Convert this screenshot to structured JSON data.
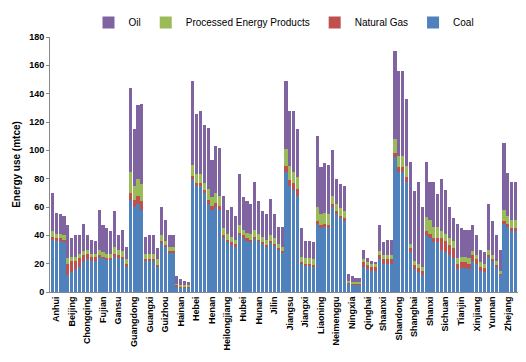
{
  "chart_data": {
    "type": "bar",
    "stacked": true,
    "grid": false,
    "legend": "top",
    "y_label": "Energy use (mtce)",
    "ylim": [
      0,
      180
    ],
    "yticks": [
      0,
      20,
      40,
      60,
      80,
      100,
      120,
      140,
      160,
      180
    ],
    "categories": [
      null,
      "Anhui",
      null,
      null,
      null,
      "Beijing",
      null,
      null,
      null,
      "Chongqing",
      null,
      null,
      null,
      "Fujian",
      null,
      null,
      null,
      "Gansu",
      null,
      null,
      null,
      "Guangdong",
      null,
      null,
      null,
      "Guangxi",
      null,
      null,
      null,
      "Guizhou",
      null,
      null,
      null,
      "Hainan",
      null,
      null,
      null,
      "Hebei",
      null,
      null,
      null,
      "Henan",
      null,
      null,
      null,
      "Heilongjiang",
      null,
      null,
      null,
      "Hubei",
      null,
      null,
      null,
      "Hunan",
      null,
      null,
      null,
      "Jilin",
      null,
      null,
      null,
      "Jiangsu",
      null,
      null,
      null,
      "Jiangxi",
      null,
      null,
      null,
      "Liaoning",
      null,
      null,
      null,
      "Neimenggu",
      null,
      null,
      null,
      "Ningxia",
      null,
      null,
      null,
      "Qinghai",
      null,
      null,
      null,
      "Shaanxi",
      null,
      null,
      null,
      "Shandong",
      null,
      null,
      null,
      "Shanghai",
      null,
      null,
      null,
      "Shanxi",
      null,
      null,
      null,
      "Sichuan",
      null,
      null,
      null,
      "Tianjin",
      null,
      null,
      null,
      "Xinjiang",
      null,
      null,
      null,
      "Yunnan",
      null,
      null,
      null,
      "Zhejang",
      null,
      null
    ],
    "series": [
      {
        "name": "Coal",
        "color": "#4f81bd",
        "values": [
          37,
          36,
          36,
          35,
          12,
          14,
          16,
          18,
          22,
          23,
          22,
          22,
          25,
          24,
          23,
          23,
          25,
          24,
          23,
          18,
          65,
          60,
          62,
          58,
          22,
          22,
          22,
          18,
          35,
          32,
          28,
          28,
          4,
          3,
          3,
          3,
          80,
          75,
          75,
          70,
          62,
          58,
          60,
          58,
          38,
          35,
          33,
          32,
          40,
          38,
          36,
          35,
          38,
          36,
          34,
          32,
          35,
          33,
          30,
          28,
          85,
          75,
          72,
          68,
          20,
          19,
          19,
          18,
          48,
          45,
          46,
          45,
          60,
          55,
          52,
          50,
          6,
          5,
          5,
          5,
          18,
          16,
          15,
          15,
          23,
          20,
          20,
          20,
          95,
          85,
          85,
          78,
          28,
          16,
          14,
          12,
          40,
          38,
          35,
          35,
          30,
          28,
          26,
          24,
          16,
          17,
          17,
          16,
          22,
          20,
          15,
          14,
          25,
          22,
          18,
          12,
          48,
          46,
          43,
          43
        ]
      },
      {
        "name": "Natural Gas",
        "color": "#c0504d",
        "values": [
          2,
          2,
          2,
          2,
          8,
          8,
          6,
          6,
          4,
          4,
          3,
          3,
          1,
          1,
          1,
          1,
          2,
          2,
          2,
          2,
          5,
          5,
          6,
          6,
          1,
          1,
          1,
          1,
          1,
          1,
          1,
          1,
          1,
          1,
          1,
          1,
          2,
          2,
          2,
          2,
          3,
          3,
          3,
          3,
          2,
          2,
          2,
          2,
          2,
          2,
          2,
          2,
          1,
          1,
          1,
          1,
          1,
          1,
          1,
          1,
          4,
          4,
          5,
          5,
          1,
          1,
          1,
          1,
          2,
          2,
          2,
          2,
          2,
          2,
          2,
          2,
          1,
          1,
          1,
          1,
          3,
          3,
          3,
          3,
          3,
          3,
          3,
          3,
          3,
          3,
          3,
          3,
          3,
          3,
          3,
          3,
          3,
          3,
          3,
          3,
          8,
          8,
          7,
          7,
          4,
          4,
          4,
          4,
          4,
          3,
          3,
          3,
          1,
          1,
          1,
          1,
          2,
          2,
          2,
          2
        ]
      },
      {
        "name": "Processed Energy Products",
        "color": "#9bbb59",
        "values": [
          4,
          3,
          3,
          3,
          4,
          3,
          3,
          3,
          3,
          3,
          2,
          2,
          4,
          3,
          3,
          3,
          5,
          4,
          4,
          3,
          15,
          10,
          12,
          12,
          4,
          4,
          4,
          4,
          4,
          3,
          3,
          3,
          1,
          1,
          1,
          1,
          8,
          6,
          6,
          5,
          8,
          6,
          7,
          7,
          5,
          4,
          4,
          3,
          5,
          4,
          4,
          4,
          5,
          4,
          4,
          4,
          4,
          4,
          3,
          3,
          12,
          10,
          8,
          8,
          4,
          4,
          4,
          4,
          10,
          8,
          8,
          8,
          6,
          5,
          5,
          5,
          1,
          1,
          1,
          1,
          2,
          2,
          2,
          2,
          3,
          3,
          3,
          3,
          10,
          8,
          8,
          8,
          3,
          3,
          3,
          3,
          10,
          10,
          8,
          8,
          5,
          5,
          5,
          5,
          4,
          4,
          4,
          4,
          3,
          3,
          3,
          3,
          4,
          3,
          3,
          2,
          8,
          6,
          6,
          6
        ]
      },
      {
        "name": "Oil",
        "color": "#8064a2",
        "values": [
          27,
          15,
          14,
          14,
          23,
          13,
          15,
          13,
          19,
          10,
          10,
          9,
          28,
          19,
          18,
          16,
          25,
          10,
          15,
          9,
          59,
          40,
          52,
          57,
          12,
          13,
          13,
          8,
          20,
          15,
          8,
          8,
          5,
          4,
          3,
          2,
          59,
          43,
          45,
          41,
          43,
          26,
          33,
          34,
          23,
          17,
          21,
          17,
          36,
          23,
          22,
          21,
          34,
          23,
          18,
          18,
          26,
          17,
          12,
          14,
          48,
          39,
          43,
          34,
          20,
          12,
          12,
          12,
          50,
          33,
          35,
          35,
          32,
          18,
          17,
          18,
          5,
          4,
          3,
          3,
          7,
          3,
          2,
          1,
          18,
          9,
          11,
          11,
          62,
          60,
          60,
          47,
          58,
          49,
          58,
          42,
          39,
          27,
          32,
          23,
          37,
          31,
          22,
          16,
          24,
          20,
          19,
          20,
          18,
          14,
          9,
          8,
          32,
          24,
          18,
          15,
          47,
          30,
          27,
          27
        ]
      }
    ]
  }
}
